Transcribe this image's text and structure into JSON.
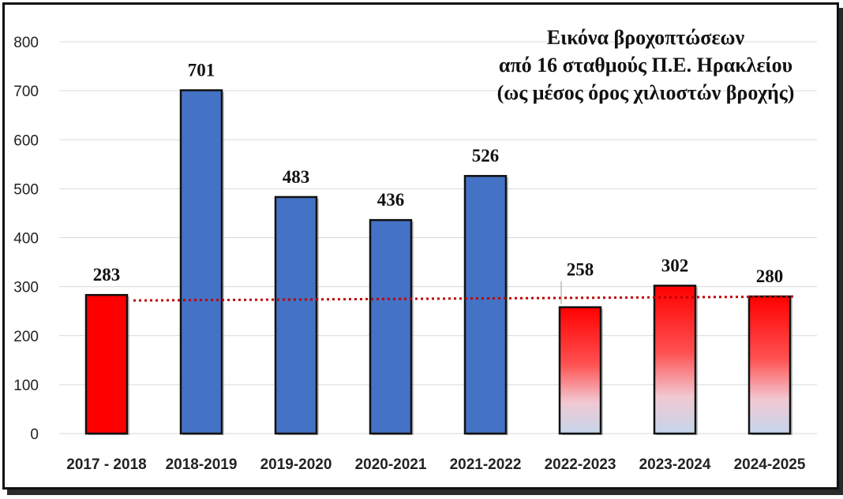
{
  "chart_data": {
    "type": "bar",
    "title_lines": [
      "Εικόνα βροχοπτώσεων",
      "από 16 σταθμούς Π.Ε. Ηρακλείου",
      "(ως μέσος όρος χιλιοστών βροχής)"
    ],
    "categories": [
      "2017 - 2018",
      "2018-2019",
      "2019-2020",
      "2020-2021",
      "2021-2022",
      "2022-2023",
      "2023-2024",
      "2024-2025"
    ],
    "values": [
      283,
      701,
      483,
      436,
      526,
      258,
      302,
      280
    ],
    "value_labels": [
      "283",
      "701",
      "483",
      "436",
      "526",
      "258",
      "302",
      "280"
    ],
    "bar_styles": [
      "red",
      "blue",
      "blue",
      "blue",
      "blue",
      "gradient",
      "gradient",
      "gradient"
    ],
    "yticks": [
      "0",
      "100",
      "200",
      "300",
      "400",
      "500",
      "600",
      "700",
      "800"
    ],
    "ylim": [
      0,
      800
    ],
    "grid": true,
    "reference_line": {
      "value": 283,
      "style": "dotted",
      "color": "#c00000"
    },
    "colors": {
      "blue": "#4472c4",
      "red": "#ff0000",
      "gradient_top": "#ff0000",
      "gradient_bottom": "#c5d6ec",
      "grid": "#d9d9d9"
    }
  }
}
